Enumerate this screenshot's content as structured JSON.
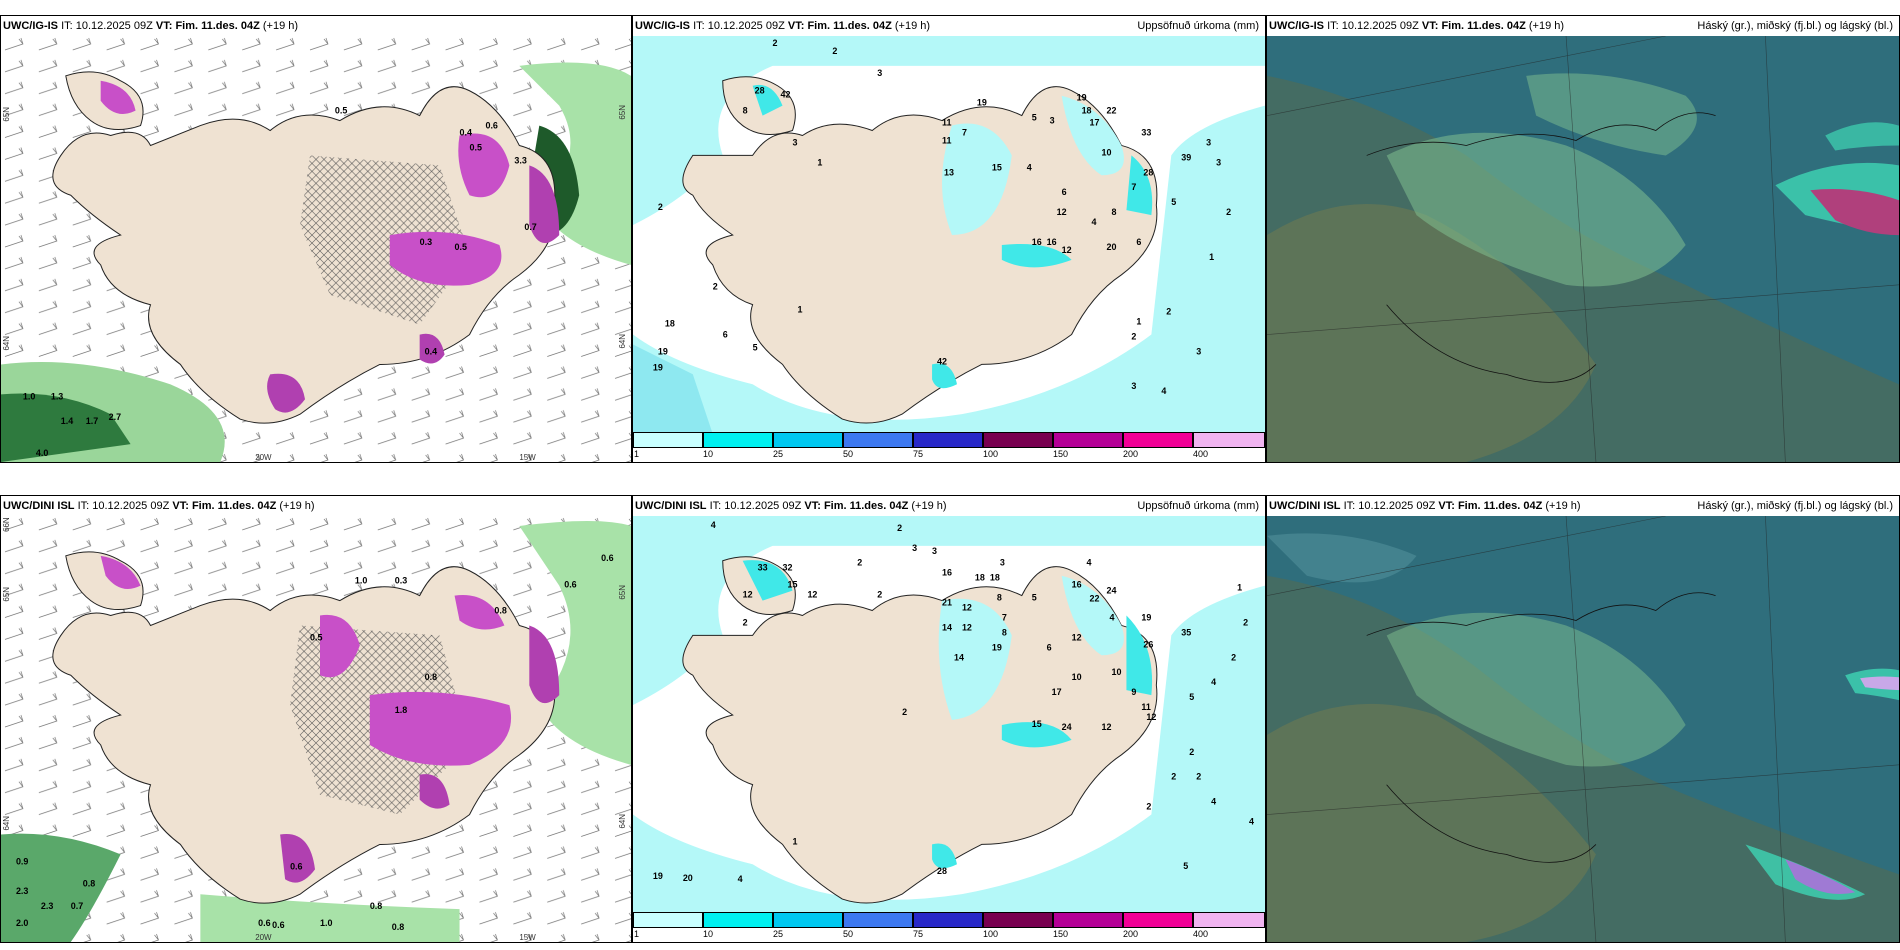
{
  "rows": [
    {
      "model": "UWC/IG-IS",
      "it_label": "IT:",
      "it_value": "10.12.2025 09Z",
      "vt_label": "VT:",
      "vt_value": "Fim. 11.des. 04Z",
      "lead": "(+19 h)",
      "wind_values": [
        "0.5",
        "0.4",
        "0.5",
        "3.3",
        "0.6",
        "0.3",
        "0.7",
        "0.5",
        "0.4",
        "1.0",
        "1.3",
        "1.4",
        "1.7",
        "2.7",
        "4.0"
      ],
      "precip_values": [
        "2",
        "2",
        "3",
        "28",
        "42",
        "8",
        "3",
        "1",
        "11",
        "7",
        "11",
        "19",
        "5",
        "3",
        "19",
        "18",
        "17",
        "22",
        "13",
        "15",
        "4",
        "10",
        "6",
        "33",
        "12",
        "8",
        "4",
        "7",
        "16",
        "16",
        "12",
        "20",
        "6",
        "28",
        "39",
        "5",
        "3",
        "3",
        "2",
        "1",
        "2",
        "2",
        "2",
        "18",
        "6",
        "5",
        "19",
        "19",
        "1",
        "42",
        "2",
        "1",
        "3",
        "3",
        "4"
      ],
      "axis_labels": [
        "65N",
        "64N",
        "20W",
        "15W",
        "65N",
        "64N"
      ]
    },
    {
      "model": "UWC/DINI ISL",
      "it_label": "IT:",
      "it_value": "10.12.2025 09Z",
      "vt_label": "VT:",
      "vt_value": "Fim. 11.des. 04Z",
      "lead": "(+19 h)",
      "wind_values": [
        "0.3",
        "1.0",
        "0.6",
        "0.6",
        "1.8",
        "0.8",
        "0.5",
        "0.8",
        "2.3",
        "0.7",
        "0.9",
        "2.3",
        "0.8",
        "2.0",
        "0.6",
        "0.6",
        "1.0",
        "0.8",
        "0.6",
        "0.8"
      ],
      "precip_values": [
        "4",
        "2",
        "3",
        "3",
        "2",
        "33",
        "32",
        "15",
        "12",
        "12",
        "2",
        "16",
        "18",
        "18",
        "3",
        "21",
        "12",
        "8",
        "5",
        "14",
        "12",
        "7",
        "8",
        "16",
        "22",
        "24",
        "19",
        "26",
        "35",
        "4",
        "4",
        "14",
        "19",
        "6",
        "12",
        "10",
        "17",
        "15",
        "24",
        "12",
        "9",
        "11",
        "10",
        "12",
        "2",
        "2",
        "2",
        "1",
        "2",
        "2",
        "4",
        "5",
        "2",
        "2",
        "4",
        "4",
        "5",
        "19",
        "20",
        "4",
        "1",
        "28",
        "2"
      ],
      "axis_labels": [
        "66N",
        "65N",
        "64N",
        "20W",
        "15W",
        "65N",
        "64N"
      ]
    }
  ],
  "precip_title": "Uppsöfnuð úrkoma (mm)",
  "cloud_title": "Háský (gr.), miðský (fj.bl.) og lágský (bl.)",
  "colorbar": {
    "ticks": [
      "1",
      "10",
      "25",
      "50",
      "75",
      "100",
      "150",
      "200",
      "400"
    ],
    "colors": [
      "#c8ffff",
      "#00f0f0",
      "#00c8f0",
      "#3c78f0",
      "#2828c8",
      "#780050",
      "#b40096",
      "#f00096",
      "#f0b4f0"
    ]
  },
  "colors": {
    "land": "#efe2d2",
    "sea_precip": "#b4f8f8",
    "wind_green": "#8cd890",
    "precip_purple": "#c850c8",
    "cloud_teal": "#3a7c84"
  }
}
